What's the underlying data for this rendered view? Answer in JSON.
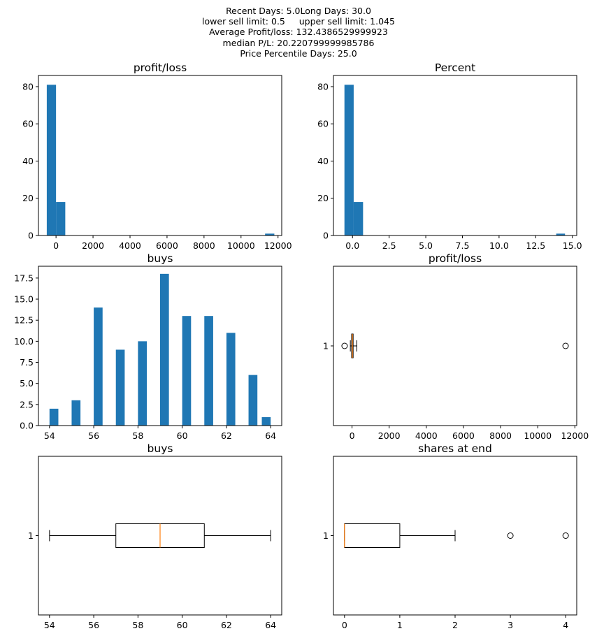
{
  "figure": {
    "suptitle_lines": [
      "Recent Days: 5.0Long Days: 30.0",
      "lower sell limit: 0.5     upper sell limit: 1.045",
      "Average Profit/loss: 132.4386529999923",
      "median P/L: 20.220799999985786",
      "Price Percentile Days: 25.0"
    ]
  },
  "colors": {
    "bar": "#1f77b4",
    "median": "#ff7f0e",
    "box": "#000000"
  },
  "chart_data": [
    {
      "type": "histogram",
      "title": "profit/loss",
      "bins": [
        {
          "x0": -500,
          "x1": 0,
          "count": 81
        },
        {
          "x0": 0,
          "x1": 500,
          "count": 18
        },
        {
          "x0": 11300,
          "x1": 11800,
          "count": 1
        }
      ],
      "xlim": [
        -950,
        12200
      ],
      "ylim": [
        0,
        86
      ],
      "xticks": [
        0,
        2000,
        4000,
        6000,
        8000,
        10000,
        12000
      ],
      "yticks": [
        0,
        20,
        40,
        60,
        80
      ]
    },
    {
      "type": "histogram",
      "title": "Percent",
      "bins": [
        {
          "x0": -0.55,
          "x1": 0.08,
          "count": 81
        },
        {
          "x0": 0.08,
          "x1": 0.72,
          "count": 18
        },
        {
          "x0": 13.9,
          "x1": 14.5,
          "count": 1
        }
      ],
      "xlim": [
        -1.3,
        15.3
      ],
      "ylim": [
        0,
        86
      ],
      "xticks": [
        0.0,
        2.5,
        5.0,
        7.5,
        10.0,
        12.5,
        15.0
      ],
      "yticks": [
        0,
        20,
        40,
        60,
        80
      ]
    },
    {
      "type": "histogram",
      "title": "buys",
      "bins": [
        {
          "x0": 54.0,
          "x1": 54.4,
          "count": 2
        },
        {
          "x0": 55.0,
          "x1": 55.4,
          "count": 3
        },
        {
          "x0": 56.0,
          "x1": 56.4,
          "count": 14
        },
        {
          "x0": 57.0,
          "x1": 57.4,
          "count": 9
        },
        {
          "x0": 58.0,
          "x1": 58.4,
          "count": 10
        },
        {
          "x0": 59.0,
          "x1": 59.4,
          "count": 18
        },
        {
          "x0": 60.0,
          "x1": 60.4,
          "count": 13
        },
        {
          "x0": 61.0,
          "x1": 61.4,
          "count": 13
        },
        {
          "x0": 62.0,
          "x1": 62.4,
          "count": 11
        },
        {
          "x0": 63.0,
          "x1": 63.4,
          "count": 6
        },
        {
          "x0": 63.6,
          "x1": 64.0,
          "count": 1
        }
      ],
      "xlim": [
        53.5,
        64.5
      ],
      "ylim": [
        0,
        18.9
      ],
      "xticks": [
        54,
        56,
        58,
        60,
        62,
        64
      ],
      "yticks": [
        0.0,
        2.5,
        5.0,
        7.5,
        10.0,
        12.5,
        15.0,
        17.5
      ]
    },
    {
      "type": "boxplot",
      "title": "profit/loss",
      "orientation": "horizontal",
      "category": "1",
      "whisker_low": -90,
      "q1": -20,
      "median": 20,
      "q3": 60,
      "whisker_high": 260,
      "fliers": [
        -400,
        11500
      ],
      "xlim": [
        -1000,
        12100
      ],
      "xticks": [
        0,
        2000,
        4000,
        6000,
        8000,
        10000,
        12000
      ]
    },
    {
      "type": "boxplot",
      "title": "buys",
      "orientation": "horizontal",
      "category": "1",
      "whisker_low": 54,
      "q1": 57,
      "median": 59,
      "q3": 61,
      "whisker_high": 64,
      "fliers": [],
      "xlim": [
        53.5,
        64.5
      ],
      "xticks": [
        54,
        56,
        58,
        60,
        62,
        64
      ]
    },
    {
      "type": "boxplot",
      "title": "shares at end",
      "orientation": "horizontal",
      "category": "1",
      "whisker_low": 0,
      "q1": 0,
      "median": 0,
      "q3": 1,
      "whisker_high": 2,
      "fliers": [
        3,
        4
      ],
      "xlim": [
        -0.2,
        4.2
      ],
      "xticks": [
        0,
        1,
        2,
        3,
        4
      ]
    }
  ]
}
